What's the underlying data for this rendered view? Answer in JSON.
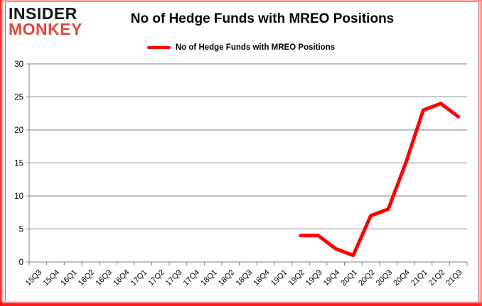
{
  "logo": {
    "line1": "INSIDER",
    "line2": "MONKEY"
  },
  "header": {
    "title": "No of Hedge Funds with MREO Positions"
  },
  "legend": {
    "label": "No of Hedge Funds with MREO Positions",
    "swatch_color": "#fe0000"
  },
  "chart_data": {
    "type": "line",
    "title": "No of Hedge Funds with MREO Positions",
    "categories": [
      "15Q3",
      "15Q4",
      "16Q1",
      "16Q2",
      "16Q3",
      "16Q4",
      "17Q1",
      "17Q2",
      "17Q3",
      "17Q4",
      "18Q1",
      "18Q2",
      "18Q3",
      "18Q4",
      "19Q1",
      "19Q2",
      "19Q3",
      "19Q4",
      "20Q1",
      "20Q2",
      "20Q3",
      "20Q4",
      "21Q1",
      "21Q2",
      "21Q3"
    ],
    "values": [
      null,
      null,
      null,
      null,
      null,
      null,
      null,
      null,
      null,
      null,
      null,
      null,
      null,
      null,
      null,
      4,
      4,
      2,
      1,
      7,
      8,
      15,
      23,
      24,
      22
    ],
    "xlabel": "",
    "ylabel": "",
    "ylim": [
      0,
      30
    ],
    "yticks": [
      0,
      5,
      10,
      15,
      20,
      25,
      30
    ],
    "grid": "horizontal",
    "legend_position": "top-center",
    "line_color": "#fe0000",
    "line_width": 5,
    "grid_color": "#808080",
    "axis_color": "#808080",
    "text_color": "#000000"
  }
}
